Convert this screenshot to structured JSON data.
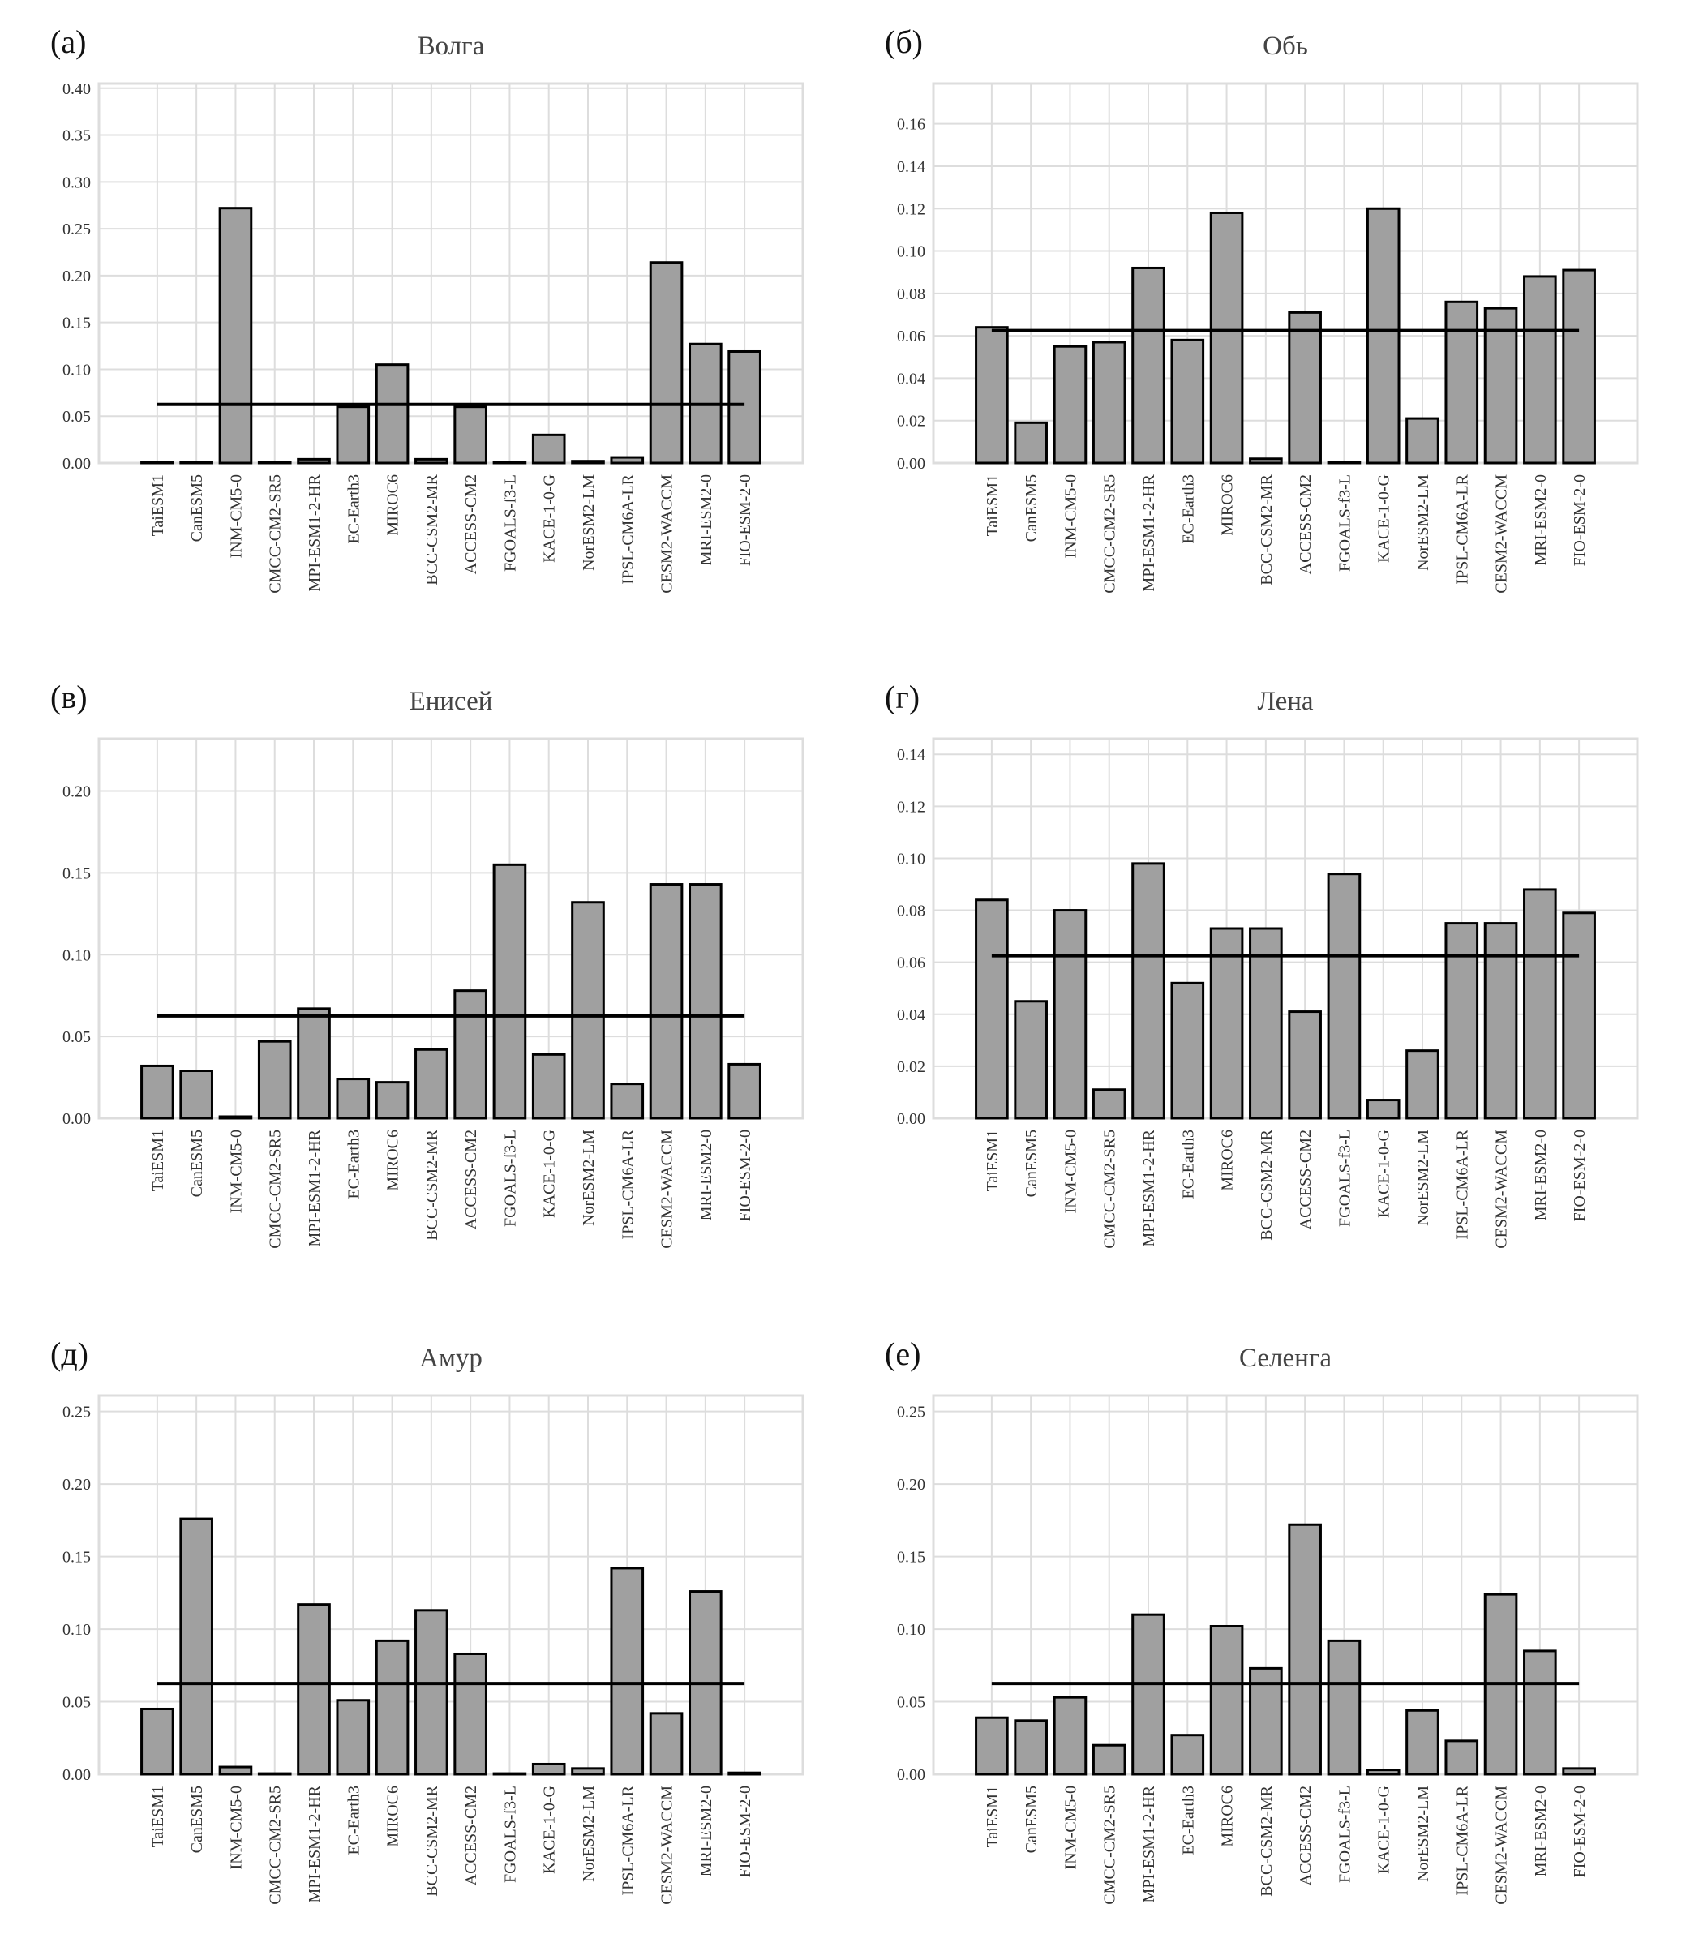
{
  "chart_data": [
    {
      "type": "bar",
      "panel": "(а)",
      "title": "Волга",
      "ylim": [
        0,
        0.405
      ],
      "yticks": [
        "0.00",
        "0.05",
        "0.10",
        "0.15",
        "0.20",
        "0.25",
        "0.30",
        "0.35",
        "0.40"
      ],
      "ytick_values": [
        0,
        0.05,
        0.1,
        0.15,
        0.2,
        0.25,
        0.3,
        0.35,
        0.4
      ],
      "values": [
        0.0005,
        0.001,
        0.272,
        0.0005,
        0.004,
        0.06,
        0.105,
        0.004,
        0.06,
        0.0005,
        0.03,
        0.002,
        0.006,
        0.214,
        0.127,
        0.119
      ],
      "mean_line": 0.0625
    },
    {
      "type": "bar",
      "panel": "(б)",
      "title": "Обь",
      "ylim": [
        0,
        0.179
      ],
      "yticks": [
        "0.00",
        "0.02",
        "0.04",
        "0.06",
        "0.08",
        "0.10",
        "0.12",
        "0.14",
        "0.16"
      ],
      "ytick_values": [
        0,
        0.02,
        0.04,
        0.06,
        0.08,
        0.1,
        0.12,
        0.14,
        0.16
      ],
      "values": [
        0.064,
        0.019,
        0.055,
        0.057,
        0.092,
        0.058,
        0.118,
        0.002,
        0.071,
        0.0003,
        0.12,
        0.021,
        0.076,
        0.073,
        0.088,
        0.091
      ],
      "mean_line": 0.0625
    },
    {
      "type": "bar",
      "panel": "(в)",
      "title": "Енисей",
      "ylim": [
        0,
        0.232
      ],
      "yticks": [
        "0.00",
        "0.05",
        "0.10",
        "0.15",
        "0.20"
      ],
      "ytick_values": [
        0,
        0.05,
        0.1,
        0.15,
        0.2
      ],
      "values": [
        0.032,
        0.029,
        0.001,
        0.047,
        0.067,
        0.024,
        0.022,
        0.042,
        0.078,
        0.155,
        0.039,
        0.132,
        0.021,
        0.143,
        0.143,
        0.033
      ],
      "mean_line": 0.0625
    },
    {
      "type": "bar",
      "panel": "(г)",
      "title": "Лена",
      "ylim": [
        0,
        0.146
      ],
      "yticks": [
        "0.00",
        "0.02",
        "0.04",
        "0.06",
        "0.08",
        "0.10",
        "0.12",
        "0.14"
      ],
      "ytick_values": [
        0,
        0.02,
        0.04,
        0.06,
        0.08,
        0.1,
        0.12,
        0.14
      ],
      "values": [
        0.084,
        0.045,
        0.08,
        0.011,
        0.098,
        0.052,
        0.073,
        0.073,
        0.041,
        0.094,
        0.007,
        0.026,
        0.075,
        0.075,
        0.088,
        0.079
      ],
      "mean_line": 0.0625
    },
    {
      "type": "bar",
      "panel": "(д)",
      "title": "Амур",
      "ylim": [
        0,
        0.261
      ],
      "yticks": [
        "0.00",
        "0.05",
        "0.10",
        "0.15",
        "0.20",
        "0.25"
      ],
      "ytick_values": [
        0,
        0.05,
        0.1,
        0.15,
        0.2,
        0.25
      ],
      "values": [
        0.045,
        0.176,
        0.005,
        0.0005,
        0.117,
        0.051,
        0.092,
        0.113,
        0.083,
        0.0005,
        0.007,
        0.004,
        0.142,
        0.042,
        0.126,
        0.001
      ],
      "mean_line": 0.0625
    },
    {
      "type": "bar",
      "panel": "(е)",
      "title": "Селенга",
      "ylim": [
        0,
        0.261
      ],
      "yticks": [
        "0.00",
        "0.05",
        "0.10",
        "0.15",
        "0.20",
        "0.25"
      ],
      "ytick_values": [
        0,
        0.05,
        0.1,
        0.15,
        0.2,
        0.25
      ],
      "values": [
        0.039,
        0.037,
        0.053,
        0.02,
        0.11,
        0.027,
        0.102,
        0.073,
        0.172,
        0.092,
        0.003,
        0.044,
        0.023,
        0.124,
        0.085,
        0.004
      ],
      "mean_line": 0.0625
    }
  ],
  "categories": [
    "TaiESM1",
    "CanESM5",
    "INM-CM5-0",
    "CMCC-CM2-SR5",
    "MPI-ESM1-2-HR",
    "EC-Earth3",
    "MIROC6",
    "BCC-CSM2-MR",
    "ACCESS-CM2",
    "FGOALS-f3-L",
    "KACE-1-0-G",
    "NorESM2-LM",
    "IPSL-CM6A-LR",
    "CESM2-WACCM",
    "MRI-ESM2-0",
    "FIO-ESM-2-0"
  ],
  "colors": {
    "bar": "#a0a0a0",
    "edge": "#000000",
    "grid": "#dddddd",
    "mean": "#000000"
  }
}
